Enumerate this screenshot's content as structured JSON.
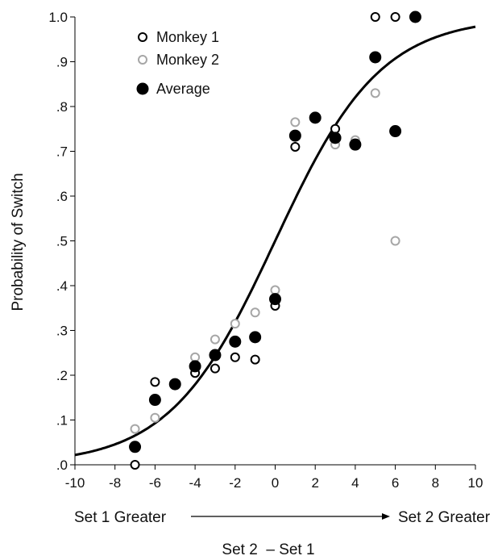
{
  "chart_data": {
    "type": "scatter",
    "title": "",
    "xlabel": "Set 2  – Set 1",
    "ylabel": "Probability of Switch",
    "xlim": [
      -10,
      10
    ],
    "ylim": [
      0,
      1
    ],
    "x_ticks": [
      -10,
      -8,
      -6,
      -4,
      -2,
      0,
      2,
      4,
      6,
      8,
      10
    ],
    "x_tick_labels": [
      "-10",
      "-8",
      "-6",
      "-4",
      "-2",
      "0",
      "2",
      "4",
      "6",
      "8",
      "10"
    ],
    "y_ticks": [
      0,
      0.1,
      0.2,
      0.3,
      0.4,
      0.5,
      0.6,
      0.7,
      0.8,
      0.9,
      1.0
    ],
    "y_tick_labels": [
      ".0",
      ".1",
      ".2",
      ".3",
      ".4",
      ".5",
      ".6",
      ".7",
      ".8",
      ".9",
      "1.0"
    ],
    "grid": false,
    "legend_position": "top-left",
    "direction_labels": {
      "left": "Set 1 Greater",
      "right": "Set 2 Greater"
    },
    "fit_curve": {
      "type": "logistic",
      "midpoint": 0,
      "slope": 0.38
    },
    "colors": {
      "monkey1": "#000000",
      "monkey2": "#a6a6a6",
      "average": "#000000",
      "curve": "#000000"
    },
    "series": [
      {
        "name": "Monkey 1",
        "marker": "open-circle",
        "points": [
          {
            "x": -7,
            "y": 0.0
          },
          {
            "x": -6,
            "y": 0.185
          },
          {
            "x": -4,
            "y": 0.205
          },
          {
            "x": -3,
            "y": 0.215
          },
          {
            "x": -2,
            "y": 0.24
          },
          {
            "x": -1,
            "y": 0.235
          },
          {
            "x": 0,
            "y": 0.355
          },
          {
            "x": 1,
            "y": 0.71
          },
          {
            "x": 2,
            "y": 0.775
          },
          {
            "x": 3,
            "y": 0.75
          },
          {
            "x": 4,
            "y": 0.715
          },
          {
            "x": 5,
            "y": 1.0
          },
          {
            "x": 6,
            "y": 1.0
          }
        ]
      },
      {
        "name": "Monkey 2",
        "marker": "open-circle",
        "points": [
          {
            "x": -7,
            "y": 0.08
          },
          {
            "x": -6,
            "y": 0.105
          },
          {
            "x": -4,
            "y": 0.24
          },
          {
            "x": -3,
            "y": 0.28
          },
          {
            "x": -2,
            "y": 0.315
          },
          {
            "x": -1,
            "y": 0.34
          },
          {
            "x": 0,
            "y": 0.39
          },
          {
            "x": 1,
            "y": 0.765
          },
          {
            "x": 3,
            "y": 0.715
          },
          {
            "x": 4,
            "y": 0.725
          },
          {
            "x": 5,
            "y": 0.83
          },
          {
            "x": 6,
            "y": 0.5
          }
        ]
      },
      {
        "name": "Average",
        "marker": "filled-circle",
        "points": [
          {
            "x": -7,
            "y": 0.04
          },
          {
            "x": -6,
            "y": 0.145
          },
          {
            "x": -5,
            "y": 0.18
          },
          {
            "x": -4,
            "y": 0.22
          },
          {
            "x": -3,
            "y": 0.245
          },
          {
            "x": -2,
            "y": 0.275
          },
          {
            "x": -1,
            "y": 0.285
          },
          {
            "x": 0,
            "y": 0.37
          },
          {
            "x": 1,
            "y": 0.735
          },
          {
            "x": 2,
            "y": 0.775
          },
          {
            "x": 3,
            "y": 0.73
          },
          {
            "x": 4,
            "y": 0.715
          },
          {
            "x": 5,
            "y": 0.91
          },
          {
            "x": 6,
            "y": 0.745
          },
          {
            "x": 7,
            "y": 1.0
          }
        ]
      }
    ]
  }
}
